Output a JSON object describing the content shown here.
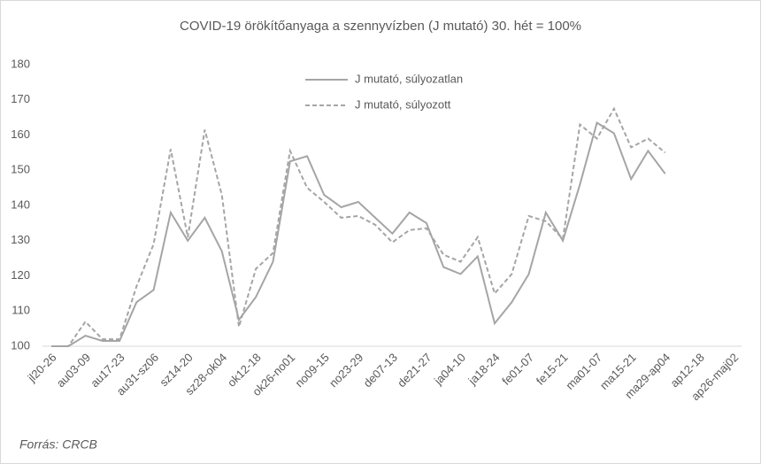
{
  "chart_data": {
    "type": "line",
    "title": "COVID-19 örökítőanyaga a szennyvízben (J mutató) 30. hét = 100%",
    "source": "Forrás: CRCB",
    "categories": [
      "jl20-26",
      null,
      "au03-09",
      null,
      "au17-23",
      null,
      "au31-sz06",
      null,
      "sz14-20",
      null,
      "sz28-ok04",
      null,
      "ok12-18",
      null,
      "ok26-no01",
      null,
      "no09-15",
      null,
      "no23-29",
      null,
      "de07-13",
      null,
      "de21-27",
      null,
      "ja04-10",
      null,
      "ja18-24",
      null,
      "fe01-07",
      null,
      "fe15-21",
      null,
      "ma01-07",
      null,
      "ma15-21",
      null,
      "ma29-ap04",
      null,
      "ap12-18",
      null,
      "ap26-maj02"
    ],
    "series": [
      {
        "name": "J mutató, súlyozatlan",
        "color": "#a5a5a5",
        "dash": "solid",
        "values": [
          100,
          100,
          103,
          101.5,
          101.5,
          112.5,
          116,
          138,
          130,
          136.5,
          127,
          107.5,
          114,
          124,
          152.5,
          154,
          143,
          139.5,
          141,
          136.5,
          132,
          138,
          135,
          122.5,
          120.5,
          125.5,
          106.5,
          112.5,
          120.5,
          138,
          130,
          146,
          163.5,
          160.5,
          147.5,
          155.5,
          149,
          null,
          null,
          null,
          null
        ]
      },
      {
        "name": "J mutató, súlyozott",
        "color": "#a5a5a5",
        "dash": "dashed",
        "values": [
          100,
          100,
          107,
          102,
          102,
          117,
          129,
          156,
          131,
          161.5,
          143,
          105.5,
          122,
          126.5,
          155.5,
          145,
          141,
          136.5,
          137,
          134.5,
          129.5,
          133,
          133.5,
          126,
          124,
          131,
          115,
          120.5,
          137,
          135.5,
          130.5,
          163,
          159,
          167.5,
          156.5,
          159,
          155,
          null,
          null,
          null,
          null
        ]
      }
    ],
    "ylim": [
      100,
      180
    ],
    "yticks": [
      100,
      110,
      120,
      130,
      140,
      150,
      160,
      170,
      180
    ],
    "grid": false,
    "legend": "top"
  }
}
